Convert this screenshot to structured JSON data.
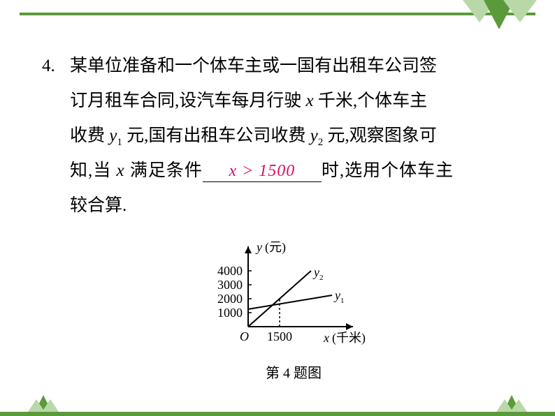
{
  "question_number": "4.",
  "problem_line1": "某单位准备和一个体车主或一国有出租车公司签",
  "problem_line2a": "订月租车合同,设汽车每月行驶 ",
  "problem_line2b": " 千米,个体车主",
  "problem_line3a": "收费 ",
  "problem_line3b": " 元,国有出租车公司收费 ",
  "problem_line3c": " 元,观察图象可",
  "problem_line4a": "知,当 ",
  "problem_line4b": " 满足条件",
  "problem_line4c": "时,选用个体车主",
  "problem_line5": "较合算.",
  "answer_text": "x > 1500",
  "figure_caption": "第 4 题图",
  "chart": {
    "type": "line",
    "y_axis_label": "y(元)",
    "x_axis_label": "x(千米)",
    "origin_label": "O",
    "x_tick_label": "1500",
    "y_ticks": [
      "1000",
      "2000",
      "3000",
      "4000"
    ],
    "series1_label": "y₁",
    "series2_label": "y₂",
    "axis_color": "#000000",
    "line_color": "#000000",
    "dash_color": "#000000",
    "y_tick_positions": [
      20,
      40,
      60,
      80
    ],
    "x_tick_position": 45,
    "intersect_x": 45,
    "intersect_y": 40,
    "y1_start_y": 25,
    "y1_end_x": 120,
    "y1_end_y": 45,
    "y2_end_x": 90,
    "y2_end_y": 80
  },
  "deco": {
    "bar_color": "#5a9a3a",
    "tri_light": "#b8d8a8",
    "tri_dark": "#5a9a3a",
    "tri_med": "#8cc070"
  }
}
